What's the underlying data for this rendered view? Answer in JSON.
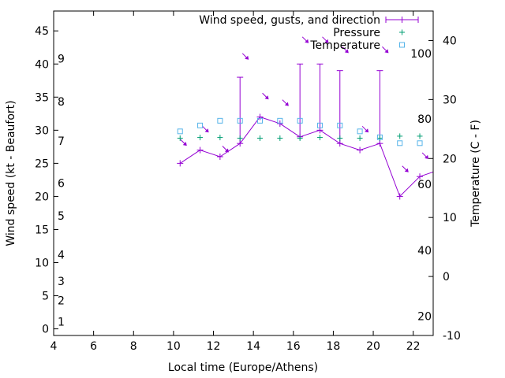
{
  "chart_data": {
    "type": "line",
    "title": "",
    "xlabel": "Local time (Europe/Athens)",
    "ylabel": "Wind speed (kt - Beaufort)",
    "y2label": "Temperature (C - F)",
    "xlim": [
      4,
      23
    ],
    "ylim": [
      -1,
      48
    ],
    "y2lim": [
      -10,
      45
    ],
    "x_ticks": [
      4,
      6,
      8,
      10,
      12,
      14,
      16,
      18,
      20,
      22
    ],
    "y_ticks": [
      0,
      5,
      10,
      15,
      20,
      25,
      30,
      35,
      40,
      45
    ],
    "y2_ticks": [
      -10,
      0,
      10,
      20,
      30,
      40
    ],
    "beaufort_labels": [
      {
        "label": "1",
        "y": 1.1
      },
      {
        "label": "2",
        "y": 4.3
      },
      {
        "label": "3",
        "y": 7.2
      },
      {
        "label": "4",
        "y": 11.2
      },
      {
        "label": "5",
        "y": 17.1
      },
      {
        "label": "6",
        "y": 22.0
      },
      {
        "label": "7",
        "y": 28.4
      },
      {
        "label": "8",
        "y": 34.3
      },
      {
        "label": "9",
        "y": 40.8
      }
    ],
    "fahrenheit_labels": [
      {
        "label": "20",
        "y2": -6.7
      },
      {
        "label": "40",
        "y2": 4.4
      },
      {
        "label": "60",
        "y2": 15.6
      },
      {
        "label": "80",
        "y2": 26.7
      },
      {
        "label": "100",
        "y2": 37.8
      }
    ],
    "legend": [
      {
        "label": "Wind speed, gusts, and direction",
        "color": "#9400d3"
      },
      {
        "label": "Pressure",
        "color": "#009e73"
      },
      {
        "label": "Temperature",
        "color": "#56b4e9"
      }
    ],
    "legend_position": "top-right",
    "series": [
      {
        "name": "Wind speed, gusts, and direction",
        "color": "#9400d3",
        "x": [
          10.33,
          11.33,
          12.33,
          13.33,
          14.33,
          15.33,
          16.33,
          17.33,
          18.33,
          19.33,
          20.33,
          21.33,
          22.33,
          23.3
        ],
        "values": [
          25,
          27,
          26,
          28,
          32,
          31,
          29,
          30,
          28,
          27,
          28,
          20,
          23,
          24
        ],
        "gusts": [
          null,
          null,
          null,
          38,
          null,
          null,
          40,
          40,
          39,
          null,
          39,
          null,
          null,
          null
        ],
        "direction_arrows": [
          {
            "x": 10.35,
            "y": 28.6
          },
          {
            "x": 11.45,
            "y": 30.6
          },
          {
            "x": 12.45,
            "y": 27.6
          },
          {
            "x": 13.45,
            "y": 41.6
          },
          {
            "x": 14.45,
            "y": 35.6
          },
          {
            "x": 15.45,
            "y": 34.6
          },
          {
            "x": 16.45,
            "y": 44.1
          },
          {
            "x": 17.45,
            "y": 44.1
          },
          {
            "x": 18.45,
            "y": 42.6
          },
          {
            "x": 19.45,
            "y": 30.6
          },
          {
            "x": 20.45,
            "y": 42.6
          },
          {
            "x": 21.45,
            "y": 24.6
          },
          {
            "x": 22.45,
            "y": 26.6
          }
        ]
      },
      {
        "name": "Pressure",
        "color": "#009e73",
        "x": [
          10.33,
          11.33,
          12.33,
          13.33,
          14.33,
          15.33,
          16.33,
          17.33,
          18.33,
          19.33,
          20.33,
          21.33,
          22.33
        ],
        "values": [
          28.8,
          28.9,
          28.9,
          28.8,
          28.8,
          28.8,
          28.8,
          28.9,
          28.8,
          28.8,
          28.8,
          29.1,
          29.1
        ]
      },
      {
        "name": "Temperature",
        "color": "#56b4e9",
        "axis": "y2",
        "x": [
          10.33,
          11.33,
          12.33,
          13.33,
          14.33,
          15.33,
          16.33,
          17.33,
          18.33,
          19.33,
          20.33,
          21.33,
          22.33
        ],
        "values": [
          24.6,
          25.6,
          26.4,
          26.4,
          26.4,
          26.4,
          26.4,
          25.6,
          25.6,
          24.6,
          23.6,
          22.6,
          22.6
        ]
      }
    ]
  }
}
